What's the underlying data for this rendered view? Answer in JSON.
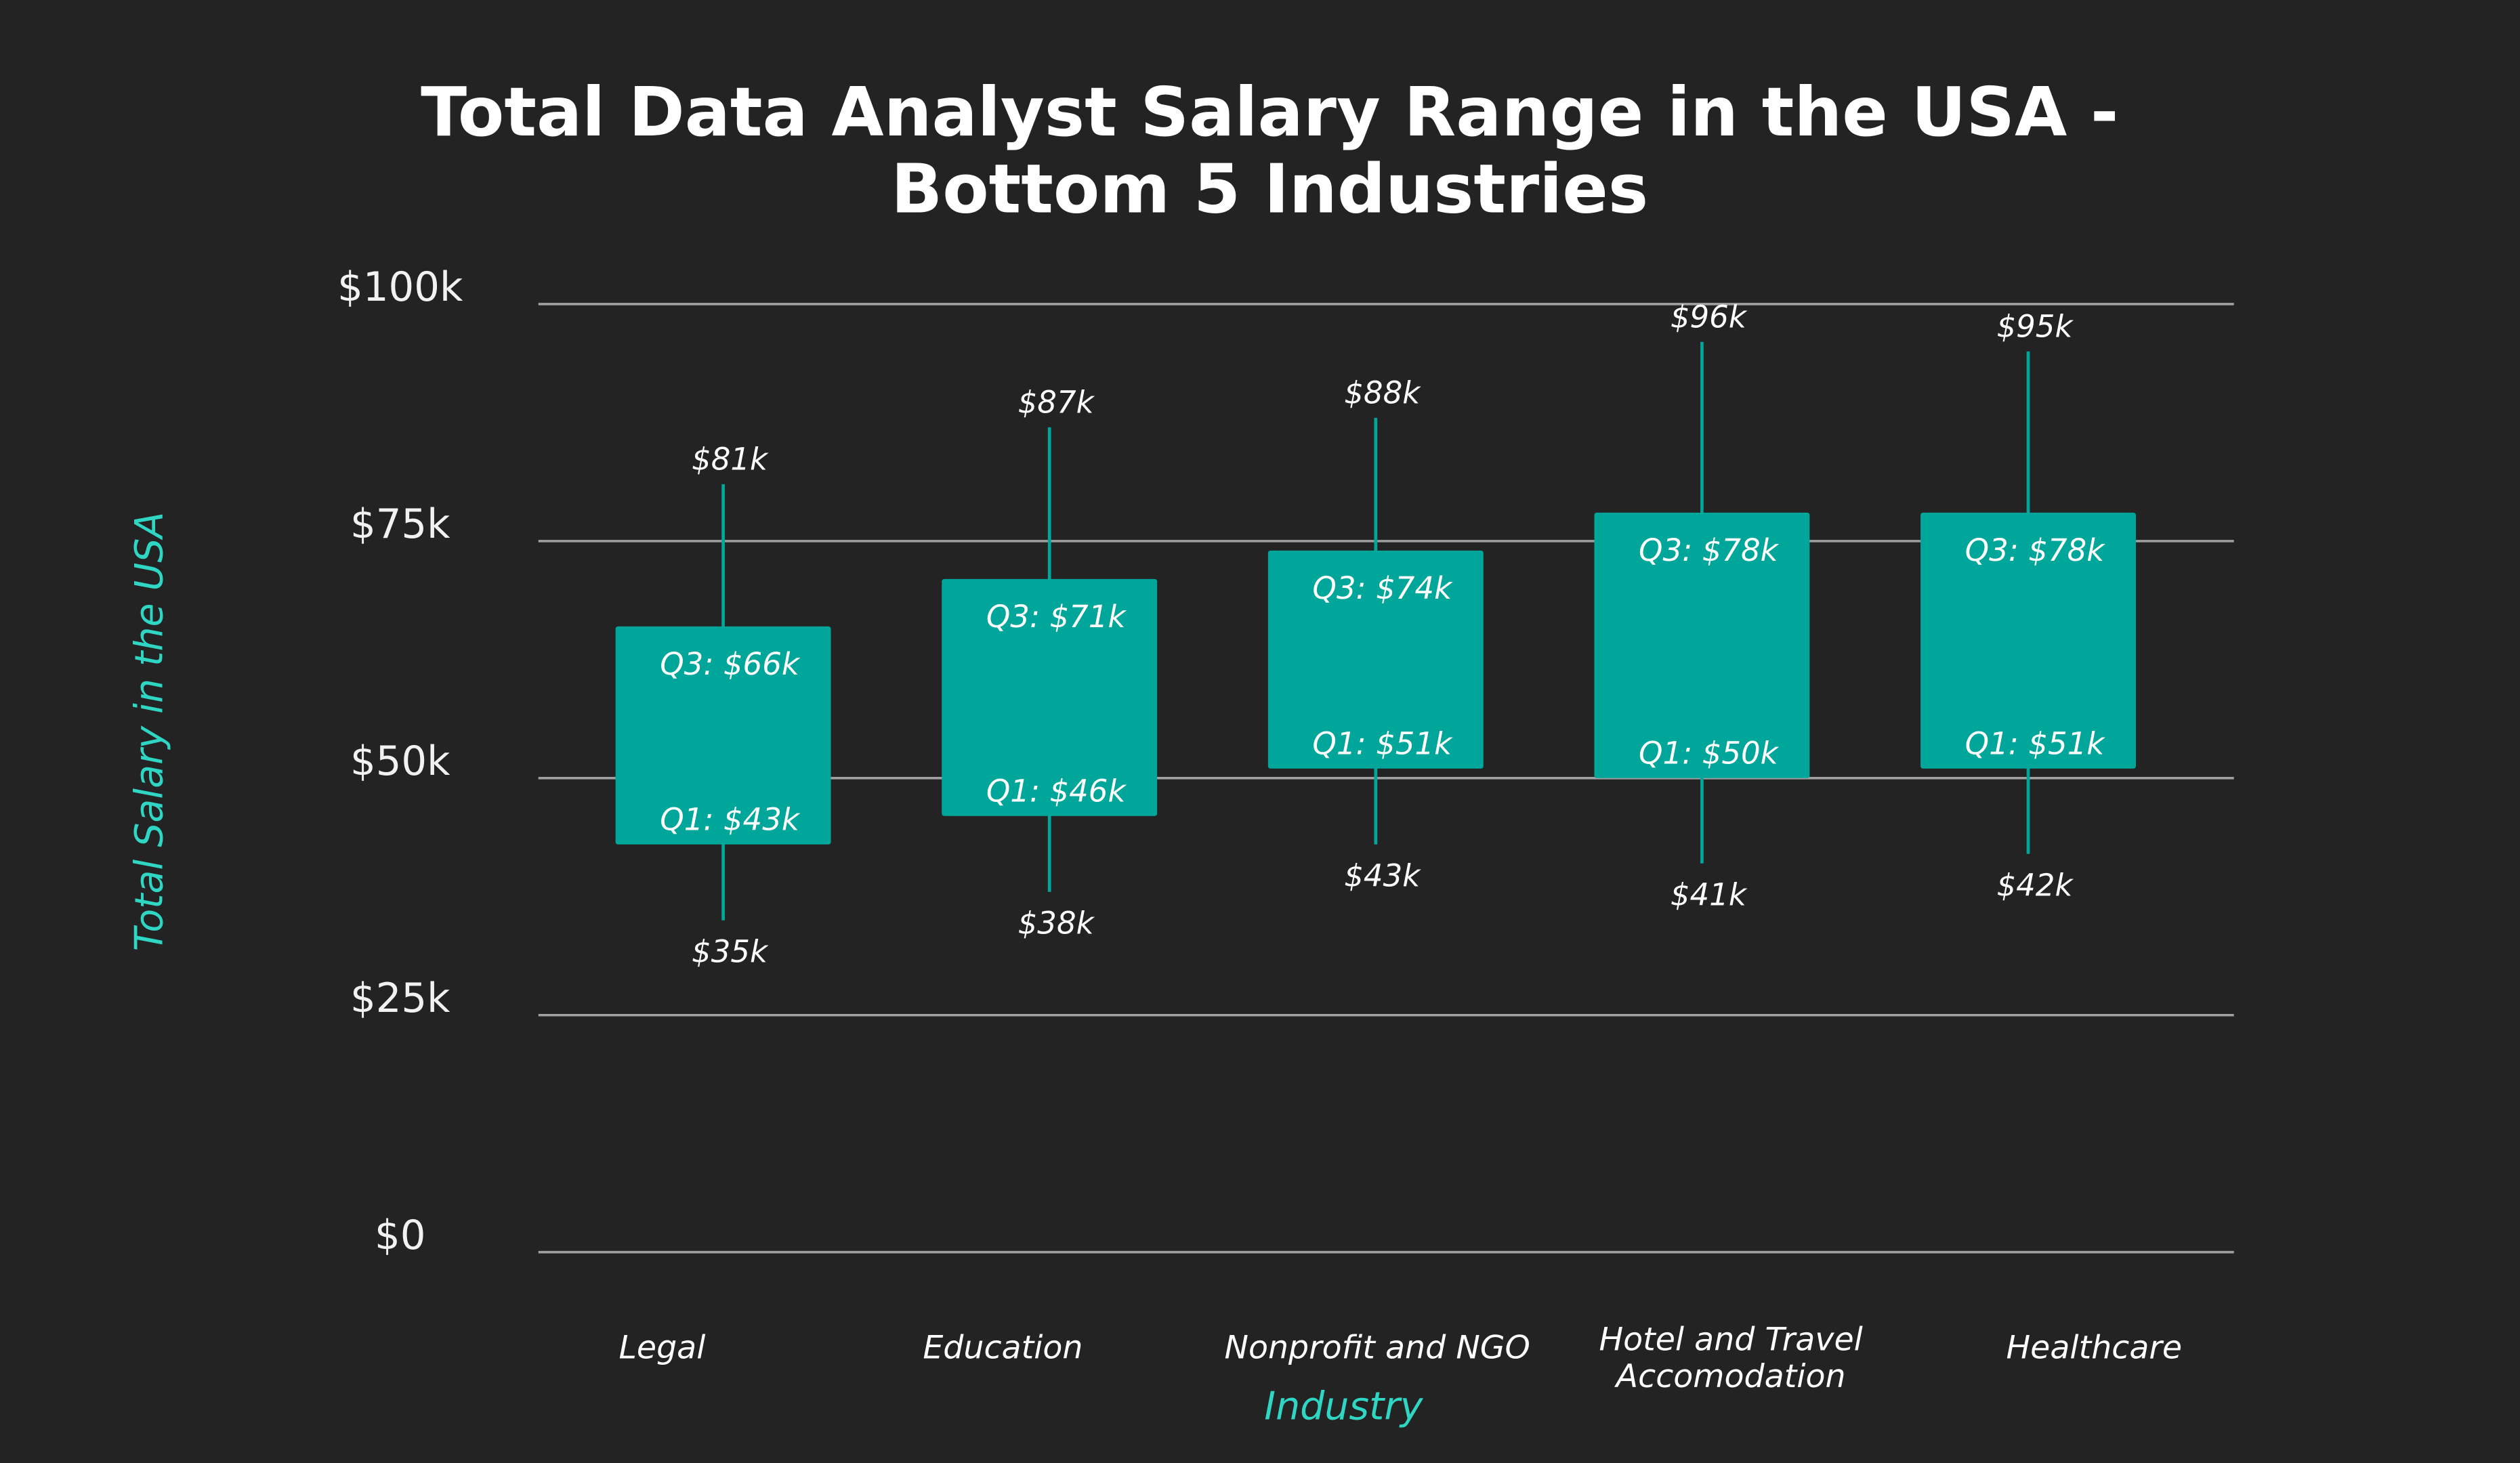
{
  "chart_data": {
    "type": "box",
    "title": [
      "Total Data Analyst Salary Range in the USA -",
      "Bottom 5 Industries"
    ],
    "xlabel": "Industry",
    "ylabel": "Total Salary in the USA",
    "ylim": [
      0,
      100000
    ],
    "yticks": [
      {
        "value": 0,
        "label": "$0"
      },
      {
        "value": 25000,
        "label": "$25k"
      },
      {
        "value": 50000,
        "label": "$50k"
      },
      {
        "value": 75000,
        "label": "$75k"
      },
      {
        "value": 100000,
        "label": "$100k"
      }
    ],
    "grid": true,
    "categories": [
      [
        "Legal"
      ],
      [
        "Education"
      ],
      [
        "Nonprofit and NGO"
      ],
      [
        "Hotel and Travel",
        "Accomodation"
      ],
      [
        "Healthcare"
      ]
    ],
    "boxes": [
      {
        "min": 35000,
        "q1": 43000,
        "q3": 66000,
        "max": 81000,
        "min_label": "$35k",
        "q1_label": "Q1: $43k",
        "q3_label": "Q3: $66k",
        "max_label": "$81k"
      },
      {
        "min": 38000,
        "q1": 46000,
        "q3": 71000,
        "max": 87000,
        "min_label": "$38k",
        "q1_label": "Q1: $46k",
        "q3_label": "Q3: $71k",
        "max_label": "$87k"
      },
      {
        "min": 43000,
        "q1": 51000,
        "q3": 74000,
        "max": 88000,
        "min_label": "$43k",
        "q1_label": "Q1: $51k",
        "q3_label": "Q3: $74k",
        "max_label": "$88k"
      },
      {
        "min": 41000,
        "q1": 50000,
        "q3": 78000,
        "max": 96000,
        "min_label": "$41k",
        "q1_label": "Q1: $50k",
        "q3_label": "Q3: $78k",
        "max_label": "$96k"
      },
      {
        "min": 42000,
        "q1": 51000,
        "q3": 78000,
        "max": 95000,
        "min_label": "$42k",
        "q1_label": "Q1: $51k",
        "q3_label": "Q3: $78k",
        "max_label": "$95k"
      }
    ],
    "colors": {
      "background": "#232323",
      "box": "#00a69a",
      "grid": "#a0a0a0",
      "axis_title": "#2fd6c4",
      "text": "#ffffff"
    }
  }
}
